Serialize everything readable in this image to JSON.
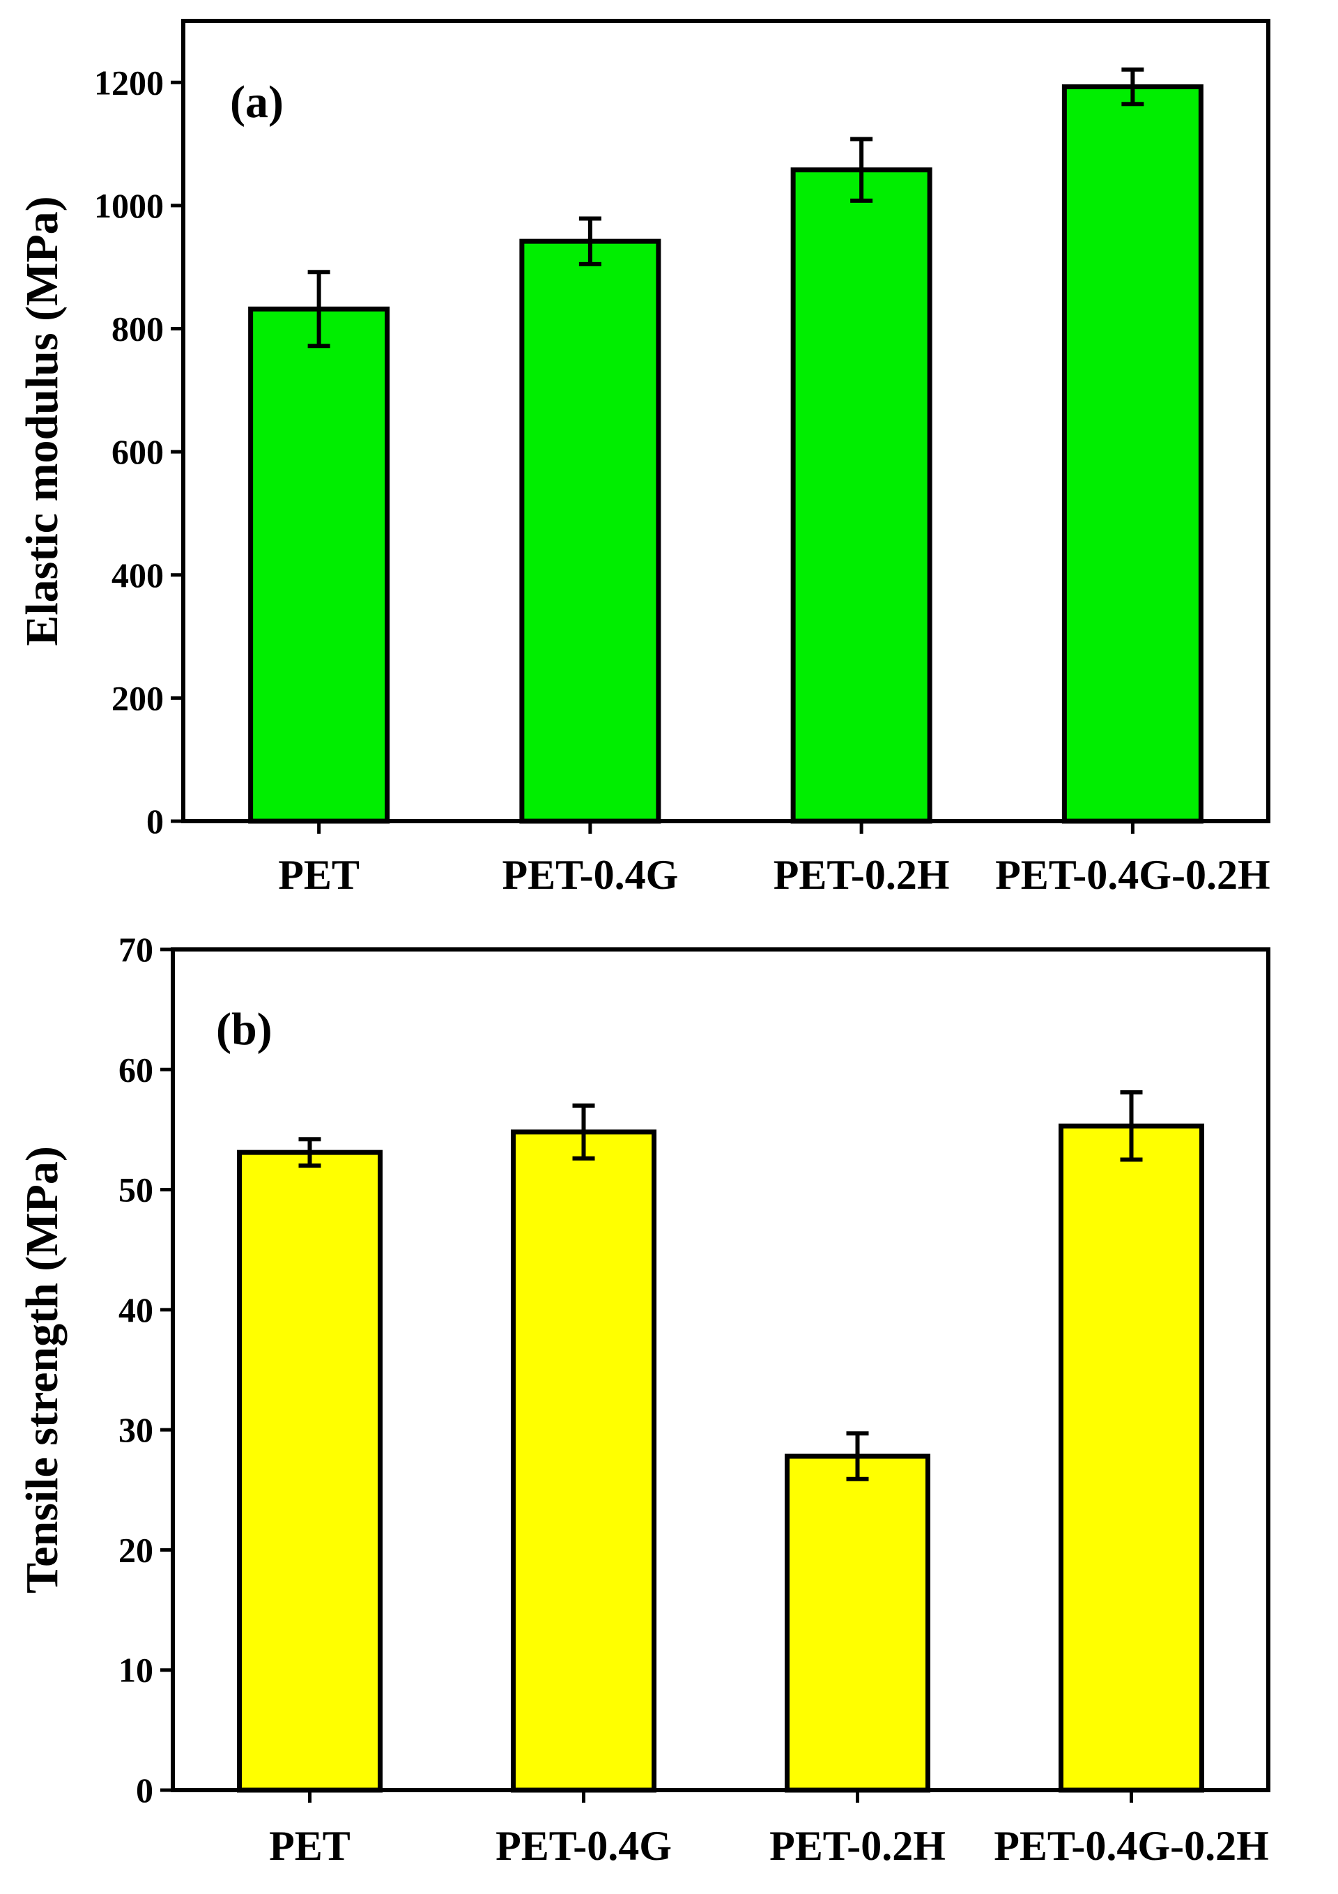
{
  "chart_data": [
    {
      "type": "bar",
      "panel_label": "(a)",
      "title": "",
      "xlabel": "",
      "ylabel": "Elastic modulus (MPa)",
      "categories": [
        "PET",
        "PET-0.4G",
        "PET-0.2H",
        "PET-0.4G-0.2H"
      ],
      "values": [
        832,
        942,
        1058,
        1193
      ],
      "errors": [
        60,
        37,
        50,
        28
      ],
      "ylim": [
        0,
        1300
      ],
      "yticks": [
        0,
        200,
        400,
        600,
        800,
        1000,
        1200
      ],
      "bar_color": "#00ee00",
      "grid": false,
      "legend": "none"
    },
    {
      "type": "bar",
      "panel_label": "(b)",
      "title": "",
      "xlabel": "",
      "ylabel": "Tensile strength (MPa)",
      "categories": [
        "PET",
        "PET-0.4G",
        "PET-0.2H",
        "PET-0.4G-0.2H"
      ],
      "values": [
        53.1,
        54.8,
        27.8,
        55.3
      ],
      "errors": [
        1.1,
        2.2,
        1.9,
        2.8
      ],
      "ylim": [
        0,
        70
      ],
      "yticks": [
        0,
        10,
        20,
        30,
        40,
        50,
        60,
        70
      ],
      "bar_color": "#ffff00",
      "grid": false,
      "legend": "none"
    }
  ]
}
